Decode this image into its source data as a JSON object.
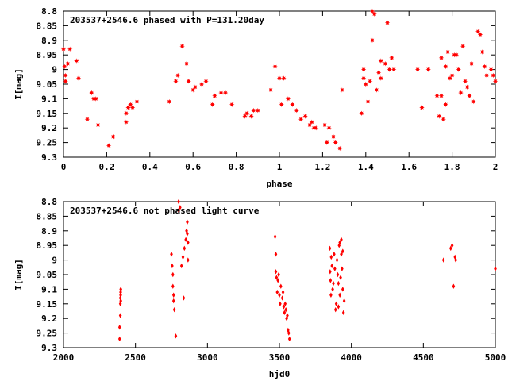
{
  "chart_data": [
    {
      "type": "scatter",
      "title": "203537+2546.6 phased with P=131.20day",
      "xlabel": "phase",
      "ylabel": "I[mag]",
      "xlim": [
        0,
        2
      ],
      "ylim": [
        9.3,
        8.8
      ],
      "y_inverted": true,
      "grid": false,
      "x_ticks": [
        "0",
        "0.2",
        "0.4",
        "0.6",
        "0.8",
        "1",
        "1.2",
        "1.4",
        "1.6",
        "1.8",
        "2"
      ],
      "y_ticks": [
        "8.8",
        "8.85",
        "8.9",
        "8.95",
        "9",
        "9.05",
        "9.1",
        "9.15",
        "9.2",
        "9.25",
        "9.3"
      ],
      "marker": "star",
      "color": "#ff0000",
      "points": [
        [
          0.0,
          8.93
        ],
        [
          0.005,
          8.99
        ],
        [
          0.01,
          9.02
        ],
        [
          0.01,
          9.04
        ],
        [
          0.02,
          8.98
        ],
        [
          0.03,
          8.93
        ],
        [
          0.06,
          8.97
        ],
        [
          0.07,
          9.03
        ],
        [
          0.11,
          9.17
        ],
        [
          0.13,
          9.08
        ],
        [
          0.14,
          9.1
        ],
        [
          0.15,
          9.1
        ],
        [
          0.16,
          9.19
        ],
        [
          0.21,
          9.26
        ],
        [
          0.23,
          9.23
        ],
        [
          0.29,
          9.18
        ],
        [
          0.29,
          9.15
        ],
        [
          0.3,
          9.13
        ],
        [
          0.31,
          9.12
        ],
        [
          0.32,
          9.13
        ],
        [
          0.34,
          9.11
        ],
        [
          0.49,
          9.11
        ],
        [
          0.52,
          9.04
        ],
        [
          0.53,
          9.02
        ],
        [
          0.55,
          8.92
        ],
        [
          0.57,
          8.98
        ],
        [
          0.58,
          9.04
        ],
        [
          0.6,
          9.07
        ],
        [
          0.61,
          9.06
        ],
        [
          0.64,
          9.05
        ],
        [
          0.66,
          9.04
        ],
        [
          0.69,
          9.12
        ],
        [
          0.7,
          9.09
        ],
        [
          0.73,
          9.08
        ],
        [
          0.75,
          9.08
        ],
        [
          0.78,
          9.12
        ],
        [
          0.84,
          9.16
        ],
        [
          0.85,
          9.15
        ],
        [
          0.87,
          9.16
        ],
        [
          0.88,
          9.14
        ],
        [
          0.9,
          9.14
        ],
        [
          0.96,
          9.07
        ],
        [
          0.98,
          8.99
        ],
        [
          1.0,
          9.03
        ],
        [
          1.01,
          9.12
        ],
        [
          1.02,
          9.03
        ],
        [
          1.04,
          9.1
        ],
        [
          1.06,
          9.12
        ],
        [
          1.08,
          9.14
        ],
        [
          1.1,
          9.17
        ],
        [
          1.12,
          9.16
        ],
        [
          1.14,
          9.19
        ],
        [
          1.15,
          9.18
        ],
        [
          1.16,
          9.2
        ],
        [
          1.17,
          9.2
        ],
        [
          1.21,
          9.19
        ],
        [
          1.22,
          9.25
        ],
        [
          1.23,
          9.2
        ],
        [
          1.25,
          9.23
        ],
        [
          1.26,
          9.25
        ],
        [
          1.28,
          9.27
        ],
        [
          1.29,
          9.07
        ],
        [
          1.38,
          9.15
        ],
        [
          1.39,
          9.0
        ],
        [
          1.39,
          9.03
        ],
        [
          1.4,
          9.05
        ],
        [
          1.41,
          9.11
        ],
        [
          1.42,
          9.04
        ],
        [
          1.43,
          8.8
        ],
        [
          1.43,
          8.9
        ],
        [
          1.44,
          8.81
        ],
        [
          1.45,
          9.07
        ],
        [
          1.46,
          9.01
        ],
        [
          1.47,
          8.97
        ],
        [
          1.47,
          9.03
        ],
        [
          1.49,
          8.98
        ],
        [
          1.5,
          8.84
        ],
        [
          1.51,
          9.0
        ],
        [
          1.52,
          8.96
        ],
        [
          1.53,
          9.0
        ],
        [
          1.64,
          9.0
        ],
        [
          1.66,
          9.13
        ],
        [
          1.69,
          9.0
        ],
        [
          1.73,
          9.09
        ],
        [
          1.74,
          9.16
        ],
        [
          1.75,
          9.09
        ],
        [
          1.76,
          9.17
        ],
        [
          1.77,
          9.12
        ],
        [
          1.75,
          8.96
        ],
        [
          1.77,
          8.99
        ],
        [
          1.78,
          8.94
        ],
        [
          1.79,
          9.03
        ],
        [
          1.8,
          9.02
        ],
        [
          1.81,
          8.95
        ],
        [
          1.82,
          8.95
        ],
        [
          1.83,
          9.0
        ],
        [
          1.84,
          9.08
        ],
        [
          1.85,
          8.92
        ],
        [
          1.86,
          9.04
        ],
        [
          1.87,
          9.06
        ],
        [
          1.88,
          9.09
        ],
        [
          1.89,
          8.98
        ],
        [
          1.9,
          9.11
        ],
        [
          1.92,
          8.87
        ],
        [
          1.93,
          8.88
        ],
        [
          1.94,
          8.94
        ],
        [
          1.95,
          8.99
        ],
        [
          1.96,
          9.02
        ],
        [
          1.98,
          9.0
        ],
        [
          1.99,
          9.02
        ],
        [
          2.0,
          9.04
        ]
      ]
    },
    {
      "type": "scatter",
      "title": "203537+2546.6 not phased light curve",
      "xlabel": "hjd0",
      "ylabel": "I[mag]",
      "xlim": [
        2000,
        5000
      ],
      "ylim": [
        9.3,
        8.8
      ],
      "y_inverted": true,
      "grid": false,
      "x_ticks": [
        "2000",
        "2500",
        "3000",
        "3500",
        "4000",
        "4500",
        "5000"
      ],
      "y_ticks": [
        "8.8",
        "8.85",
        "8.9",
        "8.95",
        "9",
        "9.05",
        "9.1",
        "9.15",
        "9.2",
        "9.25",
        "9.3"
      ],
      "marker": "diamond",
      "color": "#ff0000",
      "points": [
        [
          2390,
          9.27
        ],
        [
          2390,
          9.23
        ],
        [
          2395,
          9.19
        ],
        [
          2395,
          9.15
        ],
        [
          2395,
          9.13
        ],
        [
          2397,
          9.11
        ],
        [
          2397,
          9.12
        ],
        [
          2398,
          9.14
        ],
        [
          2398,
          9.1
        ],
        [
          2750,
          8.98
        ],
        [
          2755,
          9.02
        ],
        [
          2760,
          9.05
        ],
        [
          2760,
          9.09
        ],
        [
          2765,
          9.12
        ],
        [
          2765,
          9.14
        ],
        [
          2770,
          9.17
        ],
        [
          2780,
          9.26
        ],
        [
          2800,
          8.8
        ],
        [
          2800,
          8.83
        ],
        [
          2810,
          8.82
        ],
        [
          2820,
          9.02
        ],
        [
          2830,
          8.99
        ],
        [
          2835,
          9.13
        ],
        [
          2840,
          8.96
        ],
        [
          2850,
          8.93
        ],
        [
          2855,
          8.9
        ],
        [
          2860,
          8.87
        ],
        [
          2860,
          8.91
        ],
        [
          2865,
          8.94
        ],
        [
          2865,
          9.0
        ],
        [
          3470,
          8.92
        ],
        [
          3475,
          8.98
        ],
        [
          3475,
          9.04
        ],
        [
          3480,
          9.06
        ],
        [
          3485,
          9.11
        ],
        [
          3490,
          9.07
        ],
        [
          3495,
          9.05
        ],
        [
          3500,
          9.12
        ],
        [
          3505,
          9.15
        ],
        [
          3510,
          9.09
        ],
        [
          3520,
          9.13
        ],
        [
          3525,
          9.11
        ],
        [
          3530,
          9.16
        ],
        [
          3535,
          9.18
        ],
        [
          3540,
          9.15
        ],
        [
          3545,
          9.17
        ],
        [
          3550,
          9.2
        ],
        [
          3555,
          9.19
        ],
        [
          3560,
          9.24
        ],
        [
          3565,
          9.25
        ],
        [
          3570,
          9.27
        ],
        [
          3850,
          8.96
        ],
        [
          3852,
          9.04
        ],
        [
          3855,
          9.07
        ],
        [
          3858,
          9.12
        ],
        [
          3860,
          8.99
        ],
        [
          3865,
          9.02
        ],
        [
          3870,
          9.1
        ],
        [
          3875,
          9.08
        ],
        [
          3880,
          8.98
        ],
        [
          3885,
          9.03
        ],
        [
          3890,
          9.17
        ],
        [
          3895,
          9.15
        ],
        [
          3900,
          9.0
        ],
        [
          3905,
          9.05
        ],
        [
          3910,
          9.08
        ],
        [
          3915,
          8.95
        ],
        [
          3920,
          9.12
        ],
        [
          3925,
          9.06
        ],
        [
          3930,
          8.98
        ],
        [
          3935,
          9.03
        ],
        [
          3940,
          9.1
        ],
        [
          3945,
          9.18
        ],
        [
          3950,
          9.14
        ],
        [
          3910,
          9.16
        ],
        [
          3920,
          8.94
        ],
        [
          3930,
          8.93
        ],
        [
          3940,
          8.97
        ],
        [
          4640,
          9.0
        ],
        [
          4690,
          8.96
        ],
        [
          4700,
          8.95
        ],
        [
          4710,
          9.09
        ],
        [
          4720,
          8.99
        ],
        [
          4725,
          9.0
        ],
        [
          5000,
          9.03
        ]
      ]
    }
  ]
}
